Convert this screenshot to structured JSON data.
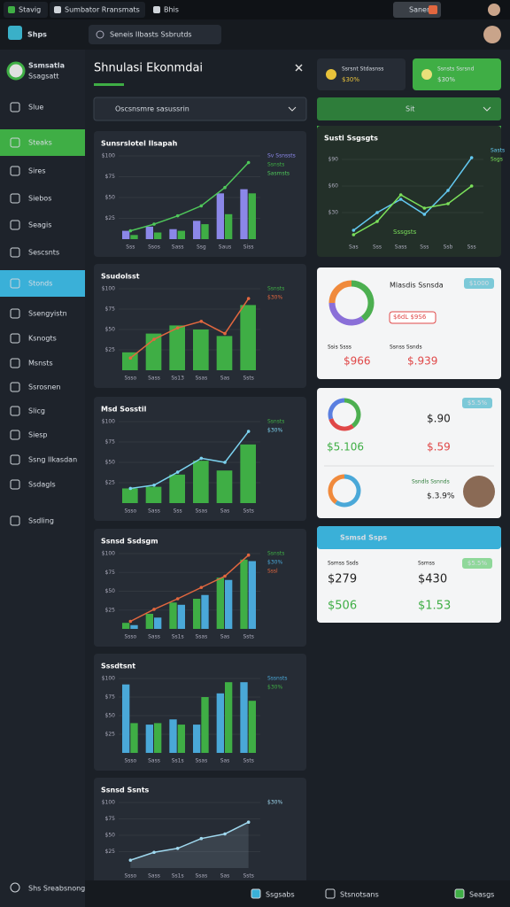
{
  "browser": {
    "tabs": [
      "Stavig",
      "Sumbator Rransmats",
      "Bhis"
    ],
    "account": "Sanen"
  },
  "app": {
    "logo": "Shps",
    "search": "Seneis Ilbasts Ssbrutds"
  },
  "sidebar": {
    "profile": {
      "name": "Ssmsatla",
      "sub": "Ssagsatt"
    },
    "items": [
      {
        "label": "Slue"
      },
      {
        "label": "Steaks",
        "active": "green"
      },
      {
        "label": "Sires"
      },
      {
        "label": "Siebos"
      },
      {
        "label": "Seagis"
      },
      {
        "label": "Sescsnts"
      },
      {
        "label": "Stonds",
        "active": "blue"
      },
      {
        "label": "Ssengyistn"
      },
      {
        "label": "Ksnogts"
      },
      {
        "label": "Msnsts"
      },
      {
        "label": "Ssrosnen"
      },
      {
        "label": "Slicg"
      },
      {
        "label": "Siesp"
      },
      {
        "label": "Ssng Ilkasdan"
      },
      {
        "label": "Ssdagls"
      },
      {
        "label": "Ssdling"
      }
    ],
    "footer": "Shs Sreabsnong"
  },
  "panel": {
    "title": "Shnulasi Ekonmdai",
    "selector": "Oscsnsmre sasussrin"
  },
  "charts": [
    {
      "type": "combo",
      "title": "Sunsrslotel Ilsapah",
      "categories": [
        "Sss",
        "Ssos",
        "Sass",
        "Ssg",
        "Saus",
        "Siss"
      ],
      "ylim": [
        0,
        100
      ],
      "yticks": [
        {
          "value": 25,
          "label": "$25"
        },
        {
          "value": 50,
          "label": "$50"
        },
        {
          "value": 75,
          "label": "$75"
        },
        {
          "value": 100,
          "label": "$100"
        }
      ],
      "series": [
        {
          "name": "Sv Ssnssts",
          "kind": "bar",
          "color": "#8b87e8",
          "values": [
            10,
            15,
            12,
            22,
            55,
            60
          ]
        },
        {
          "name": "Ssnsts",
          "kind": "bar",
          "color": "#3fae45",
          "values": [
            5,
            8,
            10,
            18,
            30,
            55
          ]
        },
        {
          "name": "Sasmsts",
          "kind": "line",
          "color": "#4fc75a",
          "values": [
            10,
            18,
            28,
            40,
            62,
            92
          ]
        }
      ]
    },
    {
      "type": "combo",
      "title": "Ssudolsst",
      "categories": [
        "Ssso",
        "Sass",
        "Ss13",
        "Ssas",
        "Sas",
        "Ssts"
      ],
      "ylim": [
        0,
        100
      ],
      "yticks": [
        {
          "value": 25,
          "label": "$25"
        },
        {
          "value": 50,
          "label": "$50"
        },
        {
          "value": 75,
          "label": "$75"
        },
        {
          "value": 100,
          "label": "$100"
        }
      ],
      "series": [
        {
          "name": "Ssnsts",
          "kind": "bar",
          "color": "#3fae45",
          "values": [
            22,
            45,
            55,
            50,
            42,
            80
          ]
        },
        {
          "name": "$30%",
          "kind": "line",
          "color": "#e2673f",
          "values": [
            15,
            38,
            52,
            60,
            45,
            88
          ]
        }
      ]
    },
    {
      "type": "combo",
      "title": "Msd Sosstil",
      "categories": [
        "Ssso",
        "Sass",
        "Sss",
        "Ssas",
        "Sas",
        "Ssts"
      ],
      "ylim": [
        0,
        100
      ],
      "yticks": [
        {
          "value": 25,
          "label": "$25"
        },
        {
          "value": 50,
          "label": "$50"
        },
        {
          "value": 75,
          "label": "$75"
        },
        {
          "value": 100,
          "label": "$100"
        }
      ],
      "series": [
        {
          "name": "Ssnsts",
          "kind": "bar",
          "color": "#3fae45",
          "values": [
            18,
            20,
            35,
            52,
            40,
            72
          ]
        },
        {
          "name": "$30%",
          "kind": "line",
          "color": "#7cd3f0",
          "values": [
            18,
            22,
            38,
            55,
            50,
            88
          ]
        }
      ]
    },
    {
      "type": "combo",
      "title": "Ssnsd Ssdsgm",
      "categories": [
        "Ssso",
        "Sass",
        "Ss1s",
        "Ssas",
        "Sas",
        "Ssts"
      ],
      "ylim": [
        0,
        100
      ],
      "yticks": [
        {
          "value": 25,
          "label": "$25"
        },
        {
          "value": 50,
          "label": "$50"
        },
        {
          "value": 75,
          "label": "$75"
        },
        {
          "value": 100,
          "label": "$100"
        }
      ],
      "series": [
        {
          "name": "Ssnsts",
          "kind": "bar",
          "color": "#3fae45",
          "values": [
            8,
            20,
            35,
            40,
            68,
            92
          ]
        },
        {
          "name": "$30%",
          "kind": "bar",
          "color": "#4aa8d8",
          "values": [
            5,
            15,
            32,
            45,
            65,
            90
          ]
        },
        {
          "name": "Sssl",
          "kind": "line",
          "color": "#e2673f",
          "values": [
            10,
            26,
            40,
            55,
            70,
            98
          ]
        }
      ]
    },
    {
      "type": "combo",
      "title": "Sssdtsnt",
      "categories": [
        "Ssso",
        "Sass",
        "Ss1s",
        "Ssas",
        "Sas",
        "Ssts"
      ],
      "ylim": [
        0,
        100
      ],
      "yticks": [
        {
          "value": 25,
          "label": "$25"
        },
        {
          "value": 50,
          "label": "$50"
        },
        {
          "value": 75,
          "label": "$75"
        },
        {
          "value": 100,
          "label": "$100"
        }
      ],
      "series": [
        {
          "name": "Sssnsts",
          "kind": "bar",
          "color": "#4aa8d8",
          "values": [
            92,
            38,
            45,
            38,
            80,
            95
          ]
        },
        {
          "name": "$30%",
          "kind": "bar",
          "color": "#3fae45",
          "values": [
            40,
            40,
            38,
            75,
            95,
            70
          ]
        }
      ]
    },
    {
      "type": "line",
      "title": "Ssnsd Ssnts",
      "categories": [
        "Ssso",
        "Sass",
        "Ss1s",
        "Ssas",
        "Sas",
        "Ssts"
      ],
      "ylim": [
        0,
        100
      ],
      "yticks": [
        {
          "value": 25,
          "label": "$25"
        },
        {
          "value": 50,
          "label": "$50"
        },
        {
          "value": 75,
          "label": "$75"
        },
        {
          "value": 100,
          "label": "$100"
        }
      ],
      "area": true,
      "series": [
        {
          "name": "$30%",
          "kind": "line",
          "color": "#9fd8ee",
          "values": [
            12,
            24,
            30,
            45,
            52,
            70
          ]
        }
      ]
    }
  ],
  "right": {
    "cards": [
      {
        "label": "Ssrsnt Stdasnss",
        "value": "$30%"
      },
      {
        "label": "Ssnsts Ssrsnd",
        "value": "$30%"
      }
    ],
    "selector": "Sit",
    "chart": {
      "type": "line",
      "title": "Sustl Ssgsgts",
      "categories": [
        "Sas",
        "Sss",
        "Sass",
        "Sss",
        "Ssb",
        "Sss"
      ],
      "ylim": [
        0,
        100
      ],
      "yticks": [
        {
          "value": 30,
          "label": "$30"
        },
        {
          "value": 60,
          "label": "$60"
        },
        {
          "value": 90,
          "label": "$90"
        }
      ],
      "note": "Sssgsts",
      "series": [
        {
          "name": "Sasts",
          "kind": "line",
          "color": "#63c8f0",
          "values": [
            10,
            30,
            45,
            28,
            55,
            92
          ]
        },
        {
          "name": "Ssgs",
          "kind": "line",
          "color": "#7be05a",
          "values": [
            5,
            20,
            50,
            35,
            40,
            60
          ]
        }
      ]
    },
    "summary": {
      "title": "Mlasdis Ssnsda",
      "badge": "$1000",
      "pill": "$6dL $9S6",
      "donut": [
        {
          "value": 40,
          "color": "#4caf50"
        },
        {
          "value": 35,
          "color": "#8a6fd8"
        },
        {
          "value": 25,
          "color": "#f08a3c"
        }
      ],
      "labels": [
        "Ssis Ssss",
        "Ssnss Ssnds"
      ],
      "values": [
        "$966",
        "$.939"
      ]
    },
    "detail": {
      "donut": [
        {
          "value": 40,
          "color": "#4caf50"
        },
        {
          "value": 30,
          "color": "#e04848"
        },
        {
          "value": 30,
          "color": "#5a7fe0"
        }
      ],
      "badge": "$5.5%",
      "values": [
        "$.90",
        "$5.106",
        "$.59"
      ],
      "donut2": [
        {
          "value": 60,
          "color": "#4aa8d8"
        },
        {
          "value": 40,
          "color": "#f08a3c"
        }
      ],
      "name": "Ssndls Ssnnds",
      "amount": "$.3.9%"
    },
    "spend": {
      "title": "Ssmsd Ssps",
      "labels": [
        "Ssmss Ssds",
        "Ssmss"
      ],
      "badge": "$5.5%",
      "values": [
        "$279",
        "$430",
        "$506",
        "$1.53"
      ]
    }
  },
  "footer_bar": [
    "Ssgsabs",
    "Stsnotsans",
    "Seasgs"
  ]
}
